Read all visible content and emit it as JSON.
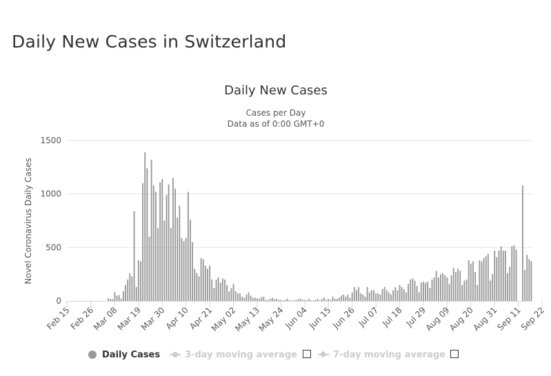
{
  "page": {
    "title": "Daily New Cases in Switzerland"
  },
  "chart_data": {
    "type": "bar",
    "title": "Daily New Cases",
    "subtitle_lines": [
      "Cases per Day",
      "Data as of 0:00 GMT+0"
    ],
    "ylabel": "Novel Coronavirus Daily Cases",
    "xlabel": "",
    "ylim": [
      0,
      1500
    ],
    "yticks": [
      0,
      500,
      1000,
      1500
    ],
    "grid": true,
    "legend_position": "bottom-center",
    "date_axis": {
      "year": 2020
    },
    "x_tick_labels": [
      "Feb 15",
      "Feb 26",
      "Mar 08",
      "Mar 19",
      "Mar 30",
      "Apr 10",
      "Apr 21",
      "May 02",
      "May 13",
      "May 24",
      "Jun 04",
      "Jun 15",
      "Jun 26",
      "Jul 07",
      "Jul 18",
      "Jul 29",
      "Aug 09",
      "Aug 20",
      "Aug 31",
      "Sep 11",
      "Sep 22"
    ],
    "colors": {
      "bar": "#999999",
      "grid": "#e6e6e6",
      "axis": "#ccd6eb",
      "inactive": "#cccccc"
    },
    "series": [
      {
        "name": "Daily Cases",
        "first_date": "Feb 15",
        "values": [
          0,
          0,
          0,
          0,
          0,
          0,
          0,
          0,
          0,
          0,
          0,
          0,
          0,
          0,
          0,
          0,
          0,
          0,
          0,
          25,
          20,
          16,
          82,
          50,
          55,
          22,
          90,
          150,
          200,
          260,
          230,
          840,
          130,
          380,
          370,
          1100,
          1390,
          1240,
          600,
          1320,
          1080,
          1020,
          680,
          1110,
          1140,
          750,
          990,
          1090,
          680,
          1150,
          1050,
          780,
          890,
          590,
          560,
          590,
          1020,
          760,
          550,
          300,
          260,
          230,
          400,
          390,
          330,
          300,
          330,
          200,
          120,
          200,
          220,
          170,
          210,
          200,
          150,
          90,
          120,
          160,
          90,
          70,
          70,
          40,
          30,
          60,
          80,
          50,
          30,
          30,
          25,
          20,
          35,
          40,
          10,
          10,
          20,
          30,
          15,
          20,
          10,
          10,
          5,
          10,
          20,
          5,
          5,
          5,
          10,
          15,
          20,
          10,
          10,
          5,
          20,
          5,
          5,
          10,
          20,
          5,
          20,
          30,
          10,
          20,
          10,
          40,
          20,
          20,
          30,
          50,
          60,
          40,
          60,
          30,
          80,
          130,
          100,
          130,
          70,
          60,
          40,
          130,
          80,
          100,
          100,
          70,
          70,
          60,
          110,
          130,
          100,
          80,
          60,
          100,
          130,
          100,
          150,
          130,
          110,
          80,
          160,
          200,
          210,
          190,
          140,
          80,
          170,
          180,
          170,
          180,
          120,
          200,
          220,
          280,
          220,
          250,
          260,
          240,
          220,
          160,
          240,
          310,
          270,
          300,
          280,
          150,
          190,
          200,
          380,
          350,
          370,
          270,
          150,
          380,
          370,
          400,
          420,
          440,
          190,
          250,
          470,
          410,
          470,
          510,
          470,
          470,
          260,
          320,
          510,
          520,
          480,
          0,
          0,
          1080,
          290,
          430,
          390,
          370
        ]
      }
    ],
    "legend": [
      {
        "label": "Daily Cases",
        "active": true
      },
      {
        "label": "3-day moving average",
        "active": false
      },
      {
        "label": "7-day moving average",
        "active": false
      }
    ]
  }
}
